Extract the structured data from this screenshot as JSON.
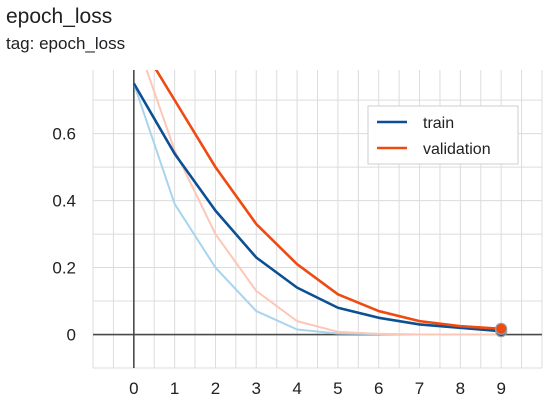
{
  "header": {
    "title": "epoch_loss",
    "tag": "tag: epoch_loss"
  },
  "chart_data": {
    "type": "line",
    "title": "epoch_loss",
    "subtitle": "tag: epoch_loss",
    "xlabel": "",
    "ylabel": "",
    "x": [
      0,
      1,
      2,
      3,
      4,
      5,
      6,
      7,
      8,
      9
    ],
    "xticks": [
      "0",
      "1",
      "2",
      "3",
      "4",
      "5",
      "6",
      "7",
      "8",
      "9"
    ],
    "yticks": [
      "0",
      "0.2",
      "0.4",
      "0.6"
    ],
    "ytick_values": [
      0,
      0.2,
      0.4,
      0.6
    ],
    "xlim": [
      -1,
      10
    ],
    "ylim": [
      -0.1,
      0.79
    ],
    "grid": true,
    "legend_position": "top-right",
    "series": [
      {
        "name": "train",
        "color": "#0b4f94",
        "raw_color": "#a9d4ee",
        "values": [
          0.75,
          0.54,
          0.37,
          0.23,
          0.14,
          0.08,
          0.05,
          0.03,
          0.02,
          0.01
        ],
        "raw_values": [
          0.75,
          0.39,
          0.2,
          0.07,
          0.015,
          0.003,
          0.001,
          0.0,
          0.0,
          0.0
        ]
      },
      {
        "name": "validation",
        "color": "#ef4a12",
        "raw_color": "#fdc7b7",
        "values": [
          0.9,
          0.7,
          0.5,
          0.33,
          0.21,
          0.12,
          0.07,
          0.04,
          0.025,
          0.017
        ],
        "raw_values": [
          0.9,
          0.55,
          0.3,
          0.13,
          0.04,
          0.008,
          0.002,
          0.0,
          0.0,
          0.0
        ]
      }
    ]
  }
}
